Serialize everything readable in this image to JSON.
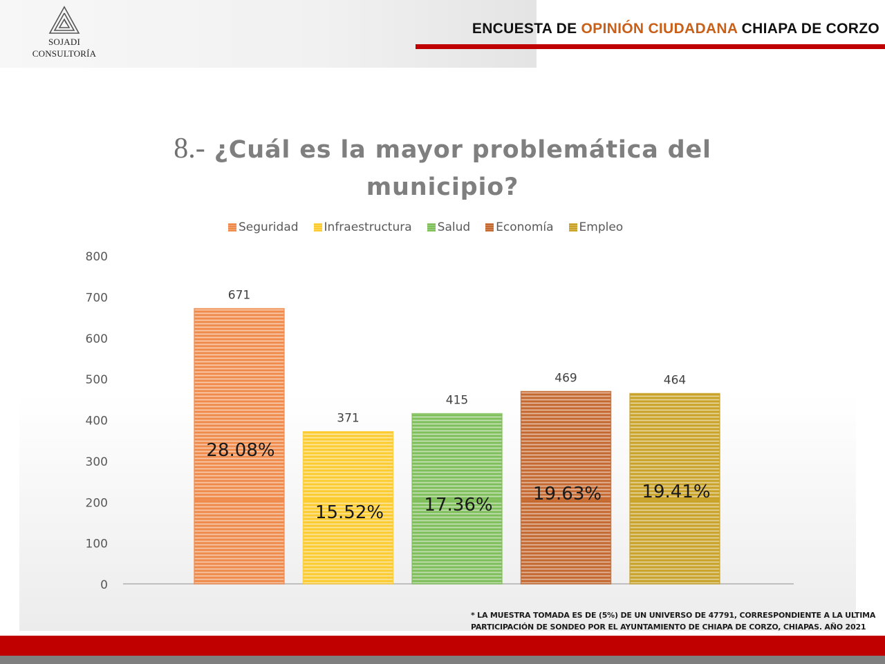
{
  "logo": {
    "icon": "triangle-spiral-logo-icon",
    "line1": "SOJADI",
    "line2": "CONSULTORÍA"
  },
  "header": {
    "title_part1": "ENCUESTA DE ",
    "title_accent": "OPINIÓN CIUDADANA",
    "title_part2": " CHIAPA DE CORZO",
    "accent_color": "#c8601a",
    "rule_color": "#c00000"
  },
  "chart_data": {
    "type": "bar",
    "title_number": "8.-",
    "title": "¿Cuál es la mayor problemática del municipio?",
    "xlabel": "",
    "ylabel": "",
    "categories": [
      "Seguridad",
      "Infraestructura",
      "Salud",
      "Economía",
      "Empleo"
    ],
    "values": [
      671,
      371,
      415,
      469,
      464
    ],
    "percent_labels": [
      "28.08%",
      "15.52%",
      "17.36%",
      "19.63%",
      "19.41%"
    ],
    "colors": [
      "#f08a4b",
      "#fccb2e",
      "#7fbf5a",
      "#c5682f",
      "#c9a227"
    ],
    "legend": [
      "Seguridad",
      "Infraestructura",
      "Salud",
      "Economía",
      "Empleo"
    ],
    "legend_position": "top",
    "ylim": [
      0,
      800
    ],
    "yticks": [
      0,
      100,
      200,
      300,
      400,
      500,
      600,
      700,
      800
    ],
    "grid": false
  },
  "footnote": {
    "line1": "* LA MUESTRA TOMADA ES DE (5%) DE UN UNIVERSO DE 47791, CORRESPONDIENTE A LA ULTIMA",
    "line2": "PARTICIPACIÓN DE SONDEO  POR EL AYUNTAMIENTO DE CHIAPA DE CORZO, CHIAPAS. AÑO 2021"
  },
  "footer": {
    "band_color": "#c00000",
    "strip_color": "#7f7f7f"
  }
}
